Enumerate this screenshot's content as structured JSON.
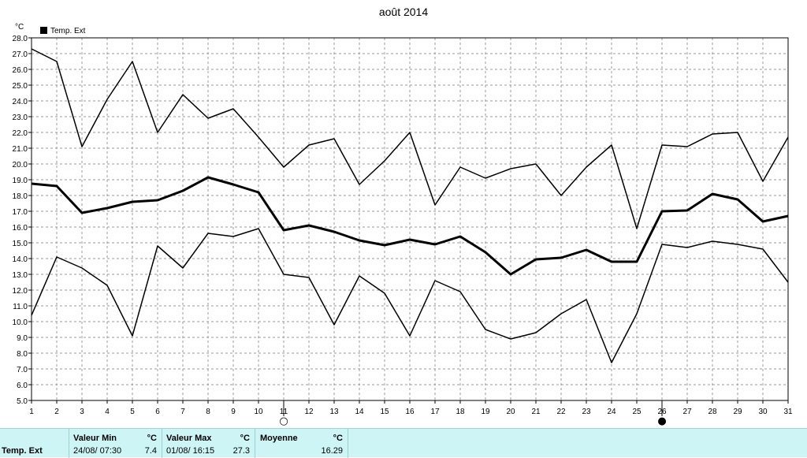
{
  "chart_data": {
    "type": "line",
    "title": "août 2014",
    "ylabel": "°C",
    "ylim": [
      5.0,
      28.0
    ],
    "y_ticks": [
      "5.0",
      "6.0",
      "7.0",
      "8.0",
      "9.0",
      "10.0",
      "11.0",
      "12.0",
      "13.0",
      "14.0",
      "15.0",
      "16.0",
      "17.0",
      "18.0",
      "19.0",
      "20.0",
      "21.0",
      "22.0",
      "23.0",
      "24.0",
      "25.0",
      "26.0",
      "27.0",
      "28.0"
    ],
    "x": [
      1,
      2,
      3,
      4,
      5,
      6,
      7,
      8,
      9,
      10,
      11,
      12,
      13,
      14,
      15,
      16,
      17,
      18,
      19,
      20,
      21,
      22,
      23,
      24,
      25,
      26,
      27,
      28,
      29,
      30,
      31
    ],
    "legend": [
      "Temp. Ext"
    ],
    "series": [
      {
        "name": "max",
        "values": [
          27.3,
          26.5,
          21.1,
          24.1,
          26.5,
          22.0,
          24.4,
          22.9,
          23.5,
          21.7,
          19.8,
          21.2,
          21.6,
          18.7,
          20.2,
          22.0,
          17.4,
          19.8,
          19.1,
          19.7,
          20.0,
          18.0,
          19.8,
          21.2,
          15.9,
          21.2,
          21.1,
          21.9,
          22.0,
          18.9,
          21.7
        ]
      },
      {
        "name": "moyenne",
        "values": [
          18.75,
          18.6,
          16.9,
          17.2,
          17.6,
          17.7,
          18.3,
          19.15,
          18.7,
          18.2,
          15.8,
          16.1,
          15.7,
          15.15,
          14.85,
          15.2,
          14.9,
          15.4,
          14.4,
          13.0,
          13.95,
          14.05,
          14.55,
          13.8,
          13.8,
          17.0,
          17.05,
          18.1,
          17.75,
          16.35,
          16.7
        ]
      },
      {
        "name": "min",
        "values": [
          10.4,
          14.1,
          13.4,
          12.3,
          9.1,
          14.8,
          13.4,
          15.6,
          15.4,
          15.9,
          13.0,
          12.8,
          9.8,
          12.9,
          11.8,
          9.1,
          12.6,
          11.9,
          9.5,
          8.9,
          9.3,
          10.5,
          11.4,
          7.4,
          10.5,
          14.9,
          14.7,
          15.1,
          14.9,
          14.6,
          12.5
        ]
      }
    ],
    "moon_markers": [
      {
        "day": 11,
        "symbol": "○"
      },
      {
        "day": 26,
        "symbol": "●"
      }
    ],
    "grid": true
  },
  "stats": {
    "row_label": "Temp. Ext",
    "min_header": "Valeur Min",
    "min_unit": "°C",
    "min_datetime": "24/08/  07:30",
    "min_value": "7.4",
    "max_header": "Valeur Max",
    "max_unit": "°C",
    "max_datetime": "01/08/  16:15",
    "max_value": "27.3",
    "avg_header": "Moyenne",
    "avg_unit": "°C",
    "avg_value": "16.29"
  },
  "colors": {
    "line": "#000000",
    "grid": "#9a9a9a",
    "panel_bg": "#cef5f5"
  }
}
